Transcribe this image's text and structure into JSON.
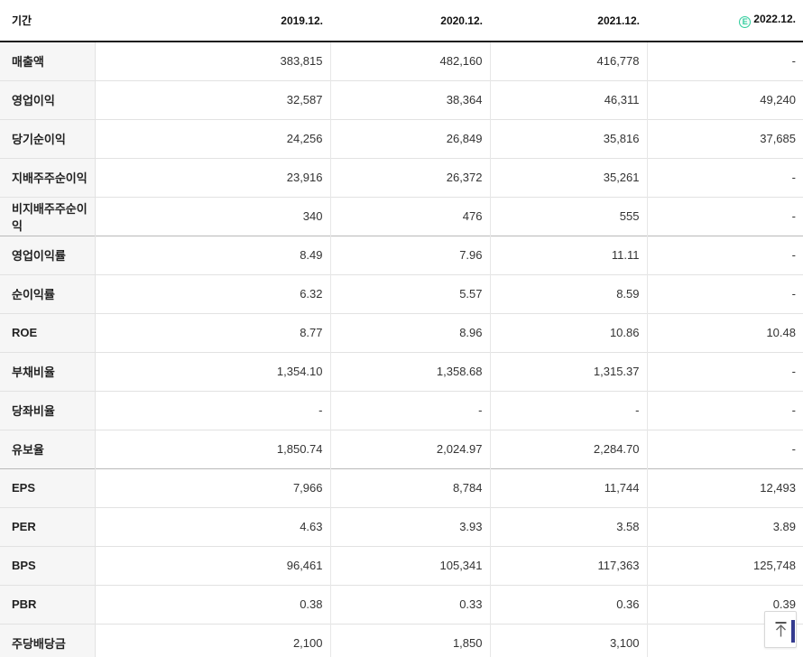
{
  "table": {
    "header": {
      "period_label": "기간",
      "columns": [
        "2019.12.",
        "2020.12.",
        "2021.12.",
        "2022.12."
      ],
      "estimate_badge": "E",
      "estimate_column_index": 3
    },
    "rows": [
      {
        "label": "매출액",
        "values": [
          "383,815",
          "482,160",
          "416,778",
          "-"
        ]
      },
      {
        "label": "영업이익",
        "values": [
          "32,587",
          "38,364",
          "46,311",
          "49,240"
        ]
      },
      {
        "label": "당기순이익",
        "values": [
          "24,256",
          "26,849",
          "35,816",
          "37,685"
        ]
      },
      {
        "label": "지배주주순이익",
        "values": [
          "23,916",
          "26,372",
          "35,261",
          "-"
        ]
      },
      {
        "label": "비지배주주순이익",
        "values": [
          "340",
          "476",
          "555",
          "-"
        ],
        "group_end": true
      },
      {
        "label": "영업이익률",
        "values": [
          "8.49",
          "7.96",
          "11.11",
          "-"
        ]
      },
      {
        "label": "순이익률",
        "values": [
          "6.32",
          "5.57",
          "8.59",
          "-"
        ]
      },
      {
        "label": "ROE",
        "values": [
          "8.77",
          "8.96",
          "10.86",
          "10.48"
        ]
      },
      {
        "label": "부채비율",
        "values": [
          "1,354.10",
          "1,358.68",
          "1,315.37",
          "-"
        ]
      },
      {
        "label": "당좌비율",
        "values": [
          "-",
          "-",
          "-",
          "-"
        ]
      },
      {
        "label": "유보율",
        "values": [
          "1,850.74",
          "2,024.97",
          "2,284.70",
          "-"
        ],
        "group_end": true
      },
      {
        "label": "EPS",
        "values": [
          "7,966",
          "8,784",
          "11,744",
          "12,493"
        ]
      },
      {
        "label": "PER",
        "values": [
          "4.63",
          "3.93",
          "3.58",
          "3.89"
        ]
      },
      {
        "label": "BPS",
        "values": [
          "96,461",
          "105,341",
          "117,363",
          "125,748"
        ]
      },
      {
        "label": "PBR",
        "values": [
          "0.38",
          "0.33",
          "0.36",
          "0.39"
        ]
      },
      {
        "label": "주당배당금",
        "values": [
          "2,100",
          "1,850",
          "3,100",
          ""
        ]
      }
    ]
  },
  "colors": {
    "estimate_green": "#32cd9d",
    "header_border": "#1b1b1b",
    "row_border": "#e2e2e2",
    "group_border": "#b9b9b9",
    "label_bg": "#f6f6f6",
    "accent_bar": "#343b8f"
  }
}
